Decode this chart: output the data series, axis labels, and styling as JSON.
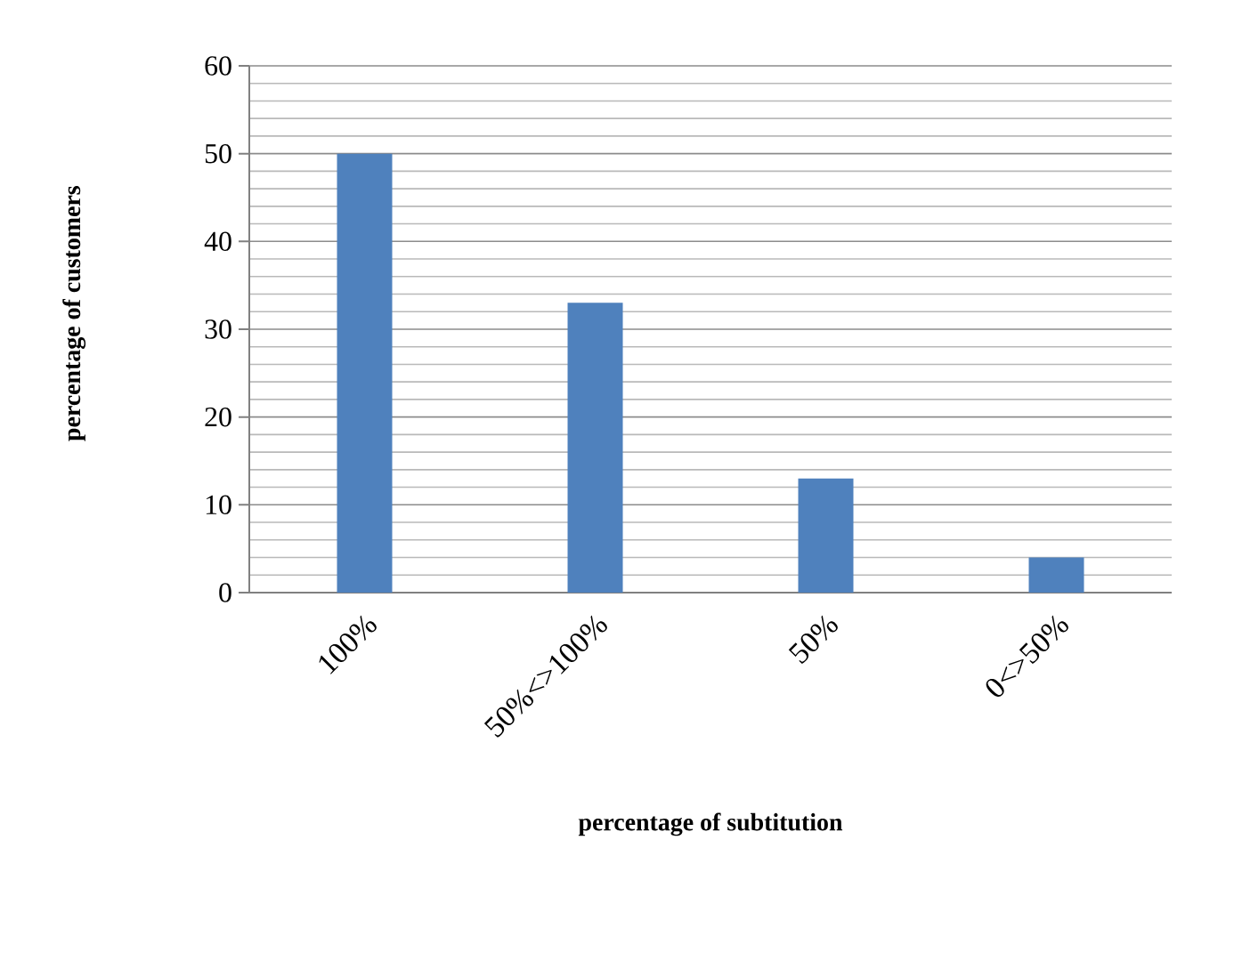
{
  "chart_data": {
    "type": "bar",
    "xlabel": "percentage of subtitution",
    "ylabel": "percentage of customers",
    "categories": [
      "100%",
      "50%<>100%",
      "50%",
      "0<>50%"
    ],
    "values": [
      50,
      33,
      13,
      4
    ],
    "color": "#4f81bd",
    "ylim": [
      0,
      60
    ],
    "yticks": [
      0,
      10,
      20,
      30,
      40,
      50,
      60
    ],
    "grid": "y"
  }
}
